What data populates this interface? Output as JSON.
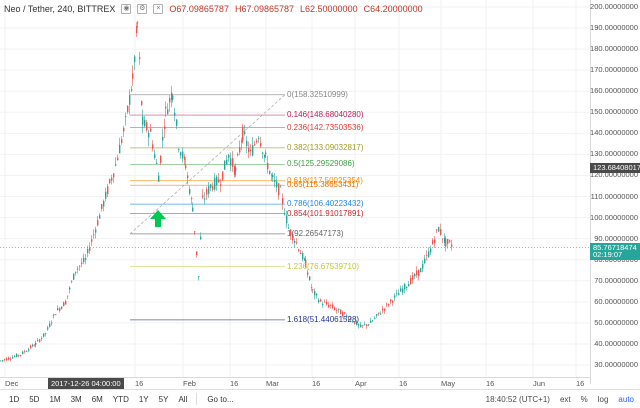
{
  "legend": {
    "symbol": "Neo / Tether, 240, BITTREX",
    "open": "O67.09865787",
    "high": "H67.09865787",
    "low": "L62.50000000",
    "close": "C64.20000000",
    "icons": [
      "eye-icon",
      "gear-icon",
      "close-icon"
    ]
  },
  "price_axis": {
    "ticks": [
      {
        "label": "200.00000000",
        "value": 200
      },
      {
        "label": "190.00000000",
        "value": 190
      },
      {
        "label": "180.00000000",
        "value": 180
      },
      {
        "label": "170.00000000",
        "value": 170
      },
      {
        "label": "160.00000000",
        "value": 160
      },
      {
        "label": "150.00000000",
        "value": 150
      },
      {
        "label": "140.00000000",
        "value": 140
      },
      {
        "label": "130.00000000",
        "value": 130
      },
      {
        "label": "120.00000000",
        "value": 120
      },
      {
        "label": "110.00000000",
        "value": 110
      },
      {
        "label": "100.00000000",
        "value": 100
      },
      {
        "label": "90.00000000",
        "value": 90
      },
      {
        "label": "80.00000000",
        "value": 80
      },
      {
        "label": "70.00000000",
        "value": 70
      },
      {
        "label": "60.00000000",
        "value": 60
      },
      {
        "label": "50.00000000",
        "value": 50
      },
      {
        "label": "40.00000000",
        "value": 40
      },
      {
        "label": "30.00000000",
        "value": 30
      }
    ],
    "badges": [
      {
        "label": "123.68408017",
        "value": 123.68,
        "color": "#4a4a4a"
      },
      {
        "label": "85.76718474",
        "value": 85.77,
        "color": "#26a69a"
      },
      {
        "label": "02:19:07",
        "value": 82.2,
        "color": "#26a69a"
      }
    ]
  },
  "fib_levels": [
    {
      "label": "0(158.32510999)",
      "value": 158.33,
      "color": "#888888"
    },
    {
      "label": "0.146(148.68040280)",
      "value": 148.68,
      "color": "#c2185b"
    },
    {
      "label": "0.236(142.73503536)",
      "value": 142.74,
      "color": "#e53935"
    },
    {
      "label": "0.382(133.09032817)",
      "value": 133.09,
      "color": "#9e9d24"
    },
    {
      "label": "0.5(125.29529086)",
      "value": 125.3,
      "color": "#43a047"
    },
    {
      "label": "0.618(117.50025354)",
      "value": 117.5,
      "color": "#fb8c00"
    },
    {
      "label": "0.65(115.38653431)",
      "value": 115.39,
      "color": "#ef6c00"
    },
    {
      "label": "0.786(106.40223432)",
      "value": 106.4,
      "color": "#1e88e5"
    },
    {
      "label": "0.854(101.91017891)",
      "value": 101.91,
      "color": "#c62828"
    },
    {
      "label": "1(92.26547173)",
      "value": 92.27,
      "color": "#666666"
    },
    {
      "label": "1.236(76.67539710)",
      "value": 76.68,
      "color": "#c0ca33"
    },
    {
      "label": "1.618(51.44061528)",
      "value": 51.44,
      "color": "#283593"
    }
  ],
  "time_axis": {
    "ticks": [
      {
        "label": "Dec",
        "x": 5
      },
      {
        "label": "16",
        "x": 135
      },
      {
        "label": "Feb",
        "x": 183
      },
      {
        "label": "16",
        "x": 230
      },
      {
        "label": "Mar",
        "x": 266
      },
      {
        "label": "16",
        "x": 312
      },
      {
        "label": "Apr",
        "x": 355
      },
      {
        "label": "16",
        "x": 399
      },
      {
        "label": "May",
        "x": 441
      },
      {
        "label": "16",
        "x": 486
      },
      {
        "label": "Jun",
        "x": 533
      },
      {
        "label": "16",
        "x": 576
      }
    ],
    "cursor_badge": {
      "label": "2017-12-26 04:00:00",
      "x": 48
    }
  },
  "bottom_bar": {
    "ranges": [
      "1D",
      "5D",
      "1M",
      "3M",
      "6M",
      "YTD",
      "1Y",
      "5Y",
      "All"
    ],
    "goto": "Go to...",
    "clock": "18:40:52 (UTC+1)",
    "ext": "ext",
    "percent": "%",
    "log": "log",
    "auto": "auto"
  },
  "colors": {
    "up": "#26a69a",
    "down": "#ef5350",
    "arrow": "#00c853"
  }
}
